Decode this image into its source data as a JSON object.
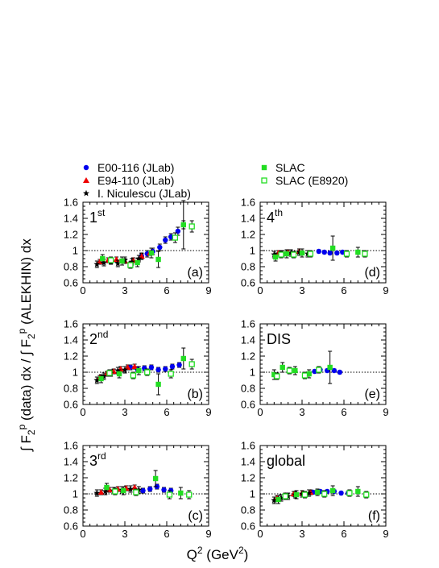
{
  "chart_data": {
    "type": "scatter",
    "xlabel": "Q² (GeV²)",
    "ylabel": "∫ F₂ᵖ (data) dx / ∫ F₂ᵖ (ALEKHIN) dx",
    "xlim": [
      0,
      9
    ],
    "ylim": [
      0.6,
      1.6
    ],
    "xticks": [
      0,
      3,
      6,
      9
    ],
    "yticks": [
      0.6,
      0.8,
      1,
      1.2,
      1.4,
      1.6
    ],
    "reference_line": 1,
    "legend": [
      {
        "name": "E00-116 (JLab)",
        "marker": "circle",
        "color": "#0000ee"
      },
      {
        "name": "E94-110 (JLab)",
        "marker": "triangle",
        "color": "#ee0000"
      },
      {
        "name": "I. Niculescu (JLab)",
        "marker": "star",
        "color": "#000000"
      },
      {
        "name": "SLAC",
        "marker": "square",
        "color": "#22dd22"
      },
      {
        "name": "SLAC (E8920)",
        "marker": "open-square",
        "color": "#22dd22"
      }
    ],
    "panels": [
      {
        "label": "1st",
        "label_main": "1",
        "label_sup": "st",
        "corner": "(a)",
        "series": [
          {
            "name": "E00-116 (JLab)",
            "x": [
              4.2,
              4.6,
              5.0,
              5.5,
              5.9,
              6.3,
              6.8,
              7.2
            ],
            "y": [
              0.93,
              0.96,
              0.99,
              1.04,
              1.13,
              1.17,
              1.24,
              1.32
            ],
            "err": [
              0.04,
              0.04,
              0.04,
              0.04,
              0.04,
              0.04,
              0.05,
              0.05
            ]
          },
          {
            "name": "E94-110 (JLab)",
            "x": [
              1.2,
              1.8,
              2.4,
              3.0,
              3.6,
              4.2,
              4.8
            ],
            "y": [
              0.86,
              0.88,
              0.89,
              0.87,
              0.88,
              0.93,
              0.97
            ],
            "err": [
              0.03,
              0.03,
              0.03,
              0.03,
              0.03,
              0.03,
              0.03
            ]
          },
          {
            "name": "I. Niculescu (JLab)",
            "x": [
              1.0,
              1.5,
              2.0,
              2.5,
              3.0,
              3.5,
              4.0
            ],
            "y": [
              0.83,
              0.85,
              0.87,
              0.84,
              0.88,
              0.86,
              0.9
            ],
            "err": [
              0.04,
              0.04,
              0.04,
              0.04,
              0.04,
              0.04,
              0.04
            ]
          },
          {
            "name": "SLAC",
            "x": [
              1.4,
              2.8,
              3.9,
              4.9,
              5.4,
              7.2
            ],
            "y": [
              0.9,
              0.87,
              0.85,
              0.97,
              0.89,
              1.32
            ],
            "err": [
              0.05,
              0.05,
              0.05,
              0.06,
              0.1,
              0.3
            ]
          },
          {
            "name": "SLAC (E8920)",
            "x": [
              2.0,
              3.4,
              6.6,
              7.8
            ],
            "y": [
              0.88,
              0.82,
              1.16,
              1.3
            ],
            "err": [
              0.04,
              0.04,
              0.06,
              0.07
            ]
          }
        ]
      },
      {
        "label": "4th",
        "label_main": "4",
        "label_sup": "th",
        "corner": "(d)",
        "series": [
          {
            "name": "E00-116 (JLab)",
            "x": [
              4.2,
              4.6,
              5.0,
              5.5,
              5.9
            ],
            "y": [
              0.99,
              0.98,
              0.97,
              0.97,
              0.98
            ],
            "err": [
              0.02,
              0.02,
              0.02,
              0.02,
              0.02
            ]
          },
          {
            "name": "E94-110 (JLab)",
            "x": [
              1.3,
              2.0,
              2.8,
              3.5
            ],
            "y": [
              0.97,
              0.98,
              0.99,
              0.97
            ],
            "err": [
              0.03,
              0.03,
              0.03,
              0.03
            ]
          },
          {
            "name": "I. Niculescu (JLab)",
            "x": [
              1.0,
              1.6,
              2.2,
              2.8,
              3.4
            ],
            "y": [
              0.95,
              0.96,
              0.97,
              0.98,
              0.96
            ],
            "err": [
              0.04,
              0.04,
              0.04,
              0.04,
              0.04
            ]
          },
          {
            "name": "SLAC",
            "x": [
              1.1,
              1.9,
              3.0,
              5.2,
              7.0
            ],
            "y": [
              0.92,
              0.96,
              0.97,
              1.03,
              0.98
            ],
            "err": [
              0.05,
              0.05,
              0.05,
              0.15,
              0.06
            ]
          },
          {
            "name": "SLAC (E8920)",
            "x": [
              1.5,
              2.4,
              3.6,
              6.2,
              7.5
            ],
            "y": [
              0.95,
              0.95,
              0.96,
              0.96,
              0.96
            ],
            "err": [
              0.04,
              0.04,
              0.04,
              0.04,
              0.04
            ]
          }
        ]
      },
      {
        "label": "2nd",
        "label_main": "2",
        "label_sup": "nd",
        "corner": "(b)",
        "series": [
          {
            "name": "E00-116 (JLab)",
            "x": [
              3.4,
              3.9,
              4.4,
              4.9,
              5.4,
              5.9,
              6.4,
              6.9
            ],
            "y": [
              1.06,
              1.04,
              1.05,
              1.06,
              1.03,
              1.04,
              1.07,
              1.09
            ],
            "err": [
              0.03,
              0.03,
              0.03,
              0.03,
              0.03,
              0.03,
              0.03,
              0.03
            ]
          },
          {
            "name": "E94-110 (JLab)",
            "x": [
              1.2,
              1.7,
              2.2,
              2.7,
              3.2,
              3.7
            ],
            "y": [
              0.93,
              0.98,
              1.01,
              1.04,
              1.06,
              1.07
            ],
            "err": [
              0.03,
              0.03,
              0.03,
              0.03,
              0.03,
              0.03
            ]
          },
          {
            "name": "I. Niculescu (JLab)",
            "x": [
              1.0,
              1.5,
              2.0,
              2.5,
              3.0
            ],
            "y": [
              0.9,
              0.95,
              0.99,
              1.02,
              1.03
            ],
            "err": [
              0.04,
              0.04,
              0.04,
              0.04,
              0.04
            ]
          },
          {
            "name": "SLAC",
            "x": [
              1.3,
              2.6,
              4.0,
              5.4,
              7.2
            ],
            "y": [
              0.92,
              0.98,
              1.02,
              0.85,
              1.17
            ],
            "err": [
              0.05,
              0.05,
              0.05,
              0.13,
              0.13
            ]
          },
          {
            "name": "SLAC (E8920)",
            "x": [
              1.9,
              3.6,
              4.6,
              6.3,
              7.8
            ],
            "y": [
              0.99,
              0.96,
              1.0,
              0.98,
              1.1
            ],
            "err": [
              0.04,
              0.04,
              0.04,
              0.05,
              0.06
            ]
          }
        ]
      },
      {
        "label": "DIS",
        "label_main": "DIS",
        "label_sup": "",
        "corner": "(e)",
        "series": [
          {
            "name": "E00-116 (JLab)",
            "x": [
              3.9,
              4.3,
              4.8,
              5.3,
              5.7
            ],
            "y": [
              1.01,
              1.03,
              1.02,
              1.02,
              1.0
            ],
            "err": [
              0.02,
              0.02,
              0.02,
              0.02,
              0.02
            ]
          },
          {
            "name": "SLAC",
            "x": [
              1.0,
              1.6,
              2.5,
              3.5,
              5.0
            ],
            "y": [
              0.97,
              1.06,
              1.02,
              0.98,
              1.06
            ],
            "err": [
              0.06,
              0.06,
              0.05,
              0.05,
              0.2
            ]
          },
          {
            "name": "SLAC (E8920)",
            "x": [
              1.2,
              2.1,
              3.2,
              4.2
            ],
            "y": [
              0.95,
              1.02,
              0.96,
              1.03
            ],
            "err": [
              0.04,
              0.04,
              0.04,
              0.04
            ]
          }
        ]
      },
      {
        "label": "3rd",
        "label_main": "3",
        "label_sup": "rd",
        "corner": "(c)",
        "series": [
          {
            "name": "E00-116 (JLab)",
            "x": [
              4.3,
              4.8,
              5.3,
              5.8,
              6.3
            ],
            "y": [
              1.04,
              1.06,
              1.09,
              1.05,
              1.04
            ],
            "err": [
              0.03,
              0.03,
              0.03,
              0.03,
              0.03
            ]
          },
          {
            "name": "E94-110 (JLab)",
            "x": [
              1.3,
              1.9,
              2.5,
              3.1,
              3.7
            ],
            "y": [
              1.02,
              1.05,
              1.06,
              1.07,
              1.08
            ],
            "err": [
              0.03,
              0.03,
              0.03,
              0.03,
              0.03
            ]
          },
          {
            "name": "I. Niculescu (JLab)",
            "x": [
              1.0,
              1.6,
              2.2,
              2.8,
              3.4,
              4.0
            ],
            "y": [
              1.01,
              1.03,
              1.04,
              1.05,
              1.06,
              1.05
            ],
            "err": [
              0.04,
              0.04,
              0.04,
              0.04,
              0.04,
              0.04
            ]
          },
          {
            "name": "SLAC",
            "x": [
              1.7,
              2.9,
              5.2,
              7.0
            ],
            "y": [
              1.08,
              1.04,
              1.19,
              1.01
            ],
            "err": [
              0.05,
              0.05,
              0.1,
              0.07
            ]
          },
          {
            "name": "SLAC (E8920)",
            "x": [
              2.3,
              3.8,
              6.2,
              7.6
            ],
            "y": [
              1.03,
              1.02,
              0.99,
              0.99
            ],
            "err": [
              0.04,
              0.04,
              0.05,
              0.05
            ]
          }
        ]
      },
      {
        "label": "global",
        "label_main": "global",
        "label_sup": "",
        "corner": "(f)",
        "series": [
          {
            "name": "E00-116 (JLab)",
            "x": [
              3.8,
              4.3,
              4.8,
              5.3,
              5.8,
              6.3
            ],
            "y": [
              1.02,
              1.03,
              1.03,
              1.03,
              1.01,
              1.01
            ],
            "err": [
              0.02,
              0.02,
              0.02,
              0.02,
              0.02,
              0.02
            ]
          },
          {
            "name": "E94-110 (JLab)",
            "x": [
              1.2,
              1.8,
              2.4,
              3.0,
              3.6
            ],
            "y": [
              0.95,
              0.98,
              1.0,
              1.01,
              1.02
            ],
            "err": [
              0.03,
              0.03,
              0.03,
              0.03,
              0.03
            ]
          },
          {
            "name": "I. Niculescu (JLab)",
            "x": [
              1.0,
              1.5,
              2.0,
              2.5,
              3.0,
              3.5
            ],
            "y": [
              0.92,
              0.95,
              0.97,
              0.99,
              1.0,
              1.01
            ],
            "err": [
              0.04,
              0.04,
              0.04,
              0.04,
              0.04,
              0.04
            ]
          },
          {
            "name": "SLAC",
            "x": [
              1.3,
              2.6,
              4.1,
              5.2,
              7.0
            ],
            "y": [
              0.93,
              0.99,
              1.02,
              1.04,
              1.03
            ],
            "err": [
              0.05,
              0.05,
              0.04,
              0.06,
              0.06
            ]
          },
          {
            "name": "SLAC (E8920)",
            "x": [
              1.8,
              3.2,
              4.6,
              6.4,
              7.6
            ],
            "y": [
              0.97,
              0.99,
              1.0,
              1.01,
              0.99
            ],
            "err": [
              0.04,
              0.04,
              0.04,
              0.04,
              0.04
            ]
          }
        ]
      }
    ]
  }
}
